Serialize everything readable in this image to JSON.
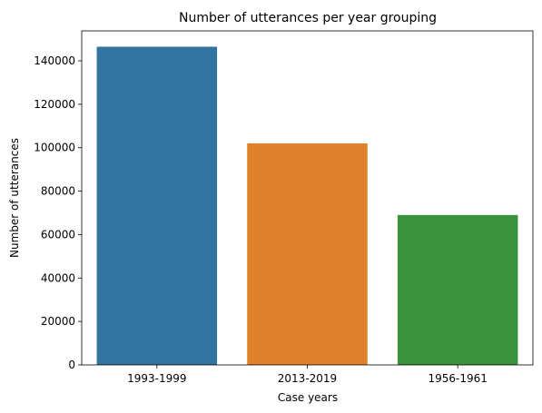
{
  "chart_data": {
    "type": "bar",
    "title": "Number of utterances per year grouping",
    "xlabel": "Case years",
    "ylabel": "Number of utterances",
    "categories": [
      "1993-1999",
      "2013-2019",
      "1956-1961"
    ],
    "values": [
      146500,
      102000,
      69000
    ],
    "colors": [
      "#3274a1",
      "#e1812c",
      "#3a923a"
    ],
    "ylim": [
      0,
      153800
    ],
    "yticks": [
      0,
      20000,
      40000,
      60000,
      80000,
      100000,
      120000,
      140000
    ],
    "grid": false,
    "legend": "none"
  }
}
